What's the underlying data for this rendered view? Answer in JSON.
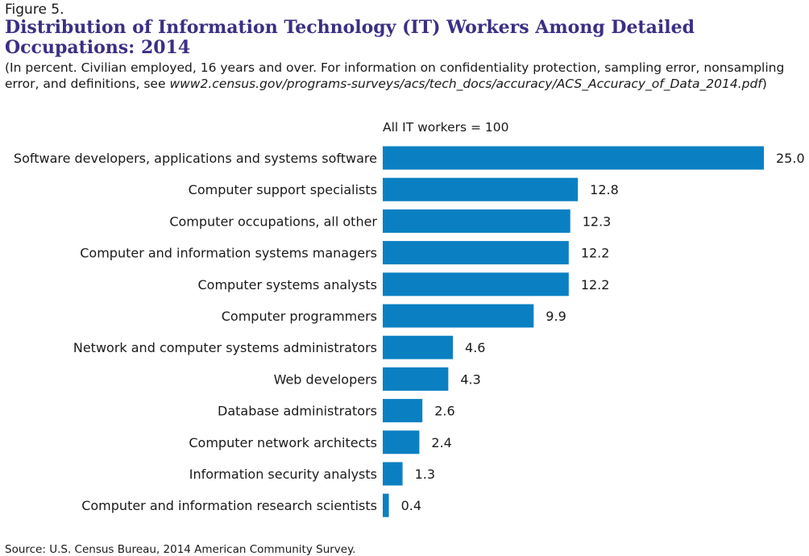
{
  "figure": {
    "label": "Figure 5.",
    "title": "Distribution of Information Technology (IT) Workers Among Detailed Occupations: 2014",
    "subtitle_prefix": "(In percent. Civilian employed, 16 years and over. For information on confidentiality protection, sampling error, nonsampling error, and definitions, see ",
    "subtitle_link": "www2.census.gov/programs-surveys/acs/tech_docs/accuracy/ACS_Accuracy_of_Data_2014.pdf",
    "subtitle_suffix": ")",
    "scale_note": "All IT workers = 100",
    "source": "Source: U.S. Census Bureau, 2014 American Community Survey."
  },
  "colors": {
    "bar": "#0a80c3",
    "title": "#3b2f84"
  },
  "chart_data": {
    "type": "bar",
    "orientation": "horizontal",
    "categories": [
      "Software developers, applications and systems software",
      "Computer support specialists",
      "Computer occupations, all other",
      "Computer and information systems managers",
      "Computer systems analysts",
      "Computer programmers",
      "Network and computer systems administrators",
      "Web developers",
      "Database administrators",
      "Computer network architects",
      "Information security analysts",
      "Computer and information research scientists"
    ],
    "values": [
      25.0,
      12.8,
      12.3,
      12.2,
      12.2,
      9.9,
      4.6,
      4.3,
      2.6,
      2.4,
      1.3,
      0.4
    ],
    "value_labels": [
      "25.0",
      "12.8",
      "12.3",
      "12.2",
      "12.2",
      "9.9",
      "4.6",
      "4.3",
      "2.6",
      "2.4",
      "1.3",
      "0.4"
    ],
    "xlim": [
      0,
      25
    ],
    "grid": false,
    "legend": "none"
  }
}
